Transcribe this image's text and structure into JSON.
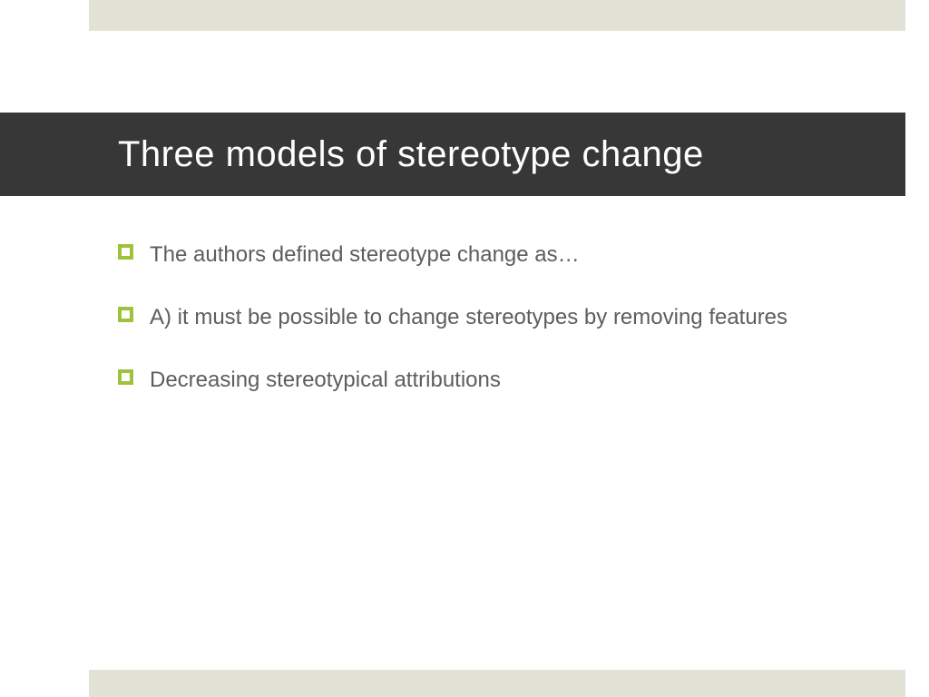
{
  "colors": {
    "bar_bg": "#e2e3d6",
    "title_bg": "#373737",
    "title_text": "#ffffff",
    "bullet_icon": "#9cc33b",
    "body_text": "#5d5d5d"
  },
  "title": "Three models of stereotype change",
  "bullets": [
    "The authors defined stereotype change as…",
    "A) it must be possible to change stereotypes by removing features",
    "Decreasing stereotypical attributions"
  ]
}
